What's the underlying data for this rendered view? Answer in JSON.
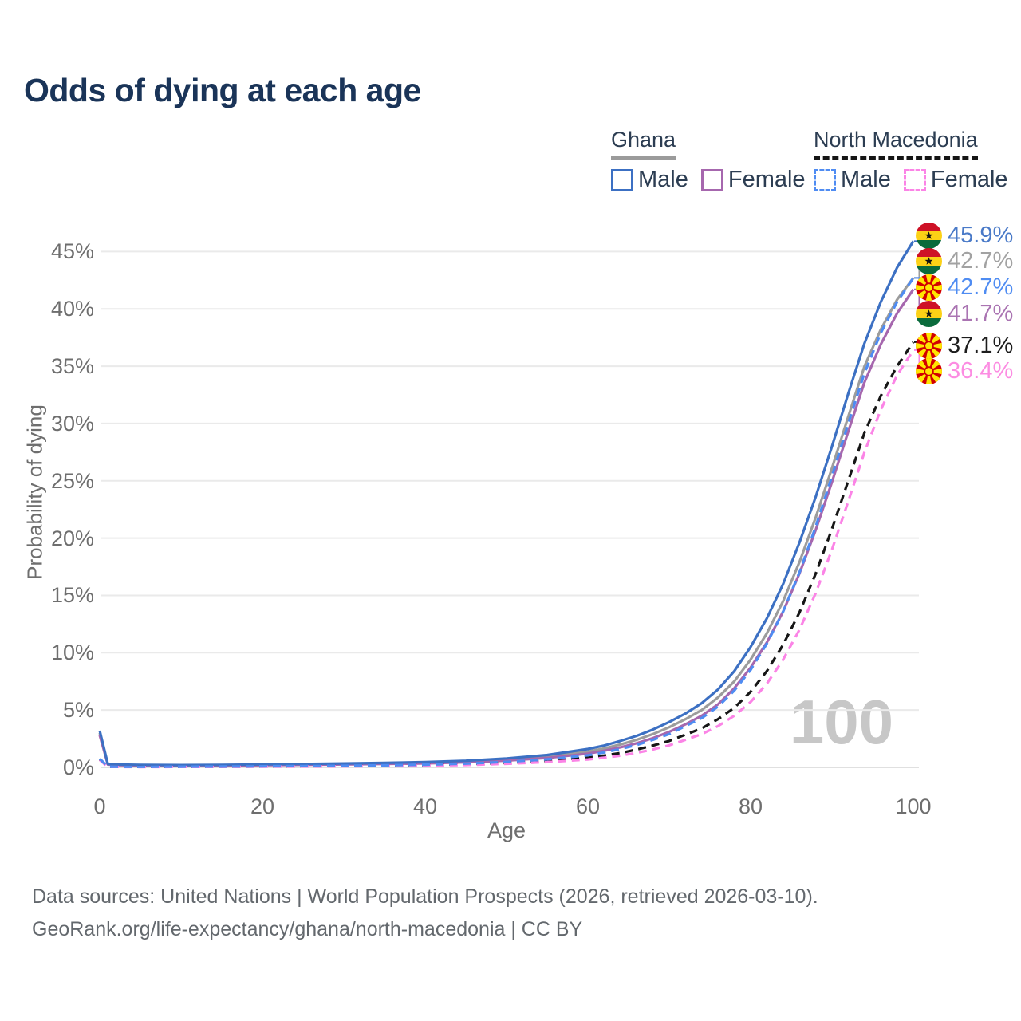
{
  "title": "Odds of dying at each age",
  "legend": {
    "groups": [
      {
        "name": "Ghana",
        "line_style": "solid",
        "items": [
          {
            "label": "Male",
            "color": "#3c70c3"
          },
          {
            "label": "Female",
            "color": "#a667ae"
          }
        ]
      },
      {
        "name": "North Macedonia",
        "line_style": "dashed",
        "items": [
          {
            "label": "Male",
            "color": "#4f8cf2"
          },
          {
            "label": "Female",
            "color": "#fb84e6"
          }
        ]
      }
    ]
  },
  "watermark": "100",
  "footer": {
    "line1": "Data sources: United Nations | World Population Prospects (2026, retrieved 2026-03-10).",
    "line2": "GeoRank.org/life-expectancy/ghana/north-macedonia | CC BY"
  },
  "chart_data": {
    "type": "line",
    "title": "Odds of dying at each age",
    "xlabel": "Age",
    "ylabel": "Probability of dying",
    "xlim": [
      0,
      100
    ],
    "ylim_pct": [
      0,
      46
    ],
    "grid": "horizontal",
    "x_ticks": [
      "0",
      "20",
      "40",
      "60",
      "80",
      "100"
    ],
    "y_ticks": [
      "0%",
      "5%",
      "10%",
      "15%",
      "20%",
      "25%",
      "30%",
      "35%",
      "40%",
      "45%"
    ],
    "ages": [
      0,
      1,
      2,
      5,
      10,
      15,
      20,
      25,
      30,
      35,
      40,
      45,
      50,
      55,
      60,
      62,
      64,
      66,
      68,
      70,
      72,
      74,
      76,
      78,
      80,
      82,
      84,
      86,
      88,
      90,
      92,
      94,
      96,
      98,
      100
    ],
    "series": [
      {
        "name": "Ghana Both sexes",
        "country": "Ghana",
        "sex": "Both",
        "color": "#9c9c9c",
        "dash": false,
        "end_label": "42.7%",
        "values_pct": [
          3.0,
          0.27,
          0.22,
          0.19,
          0.17,
          0.19,
          0.22,
          0.25,
          0.29,
          0.33,
          0.39,
          0.5,
          0.67,
          0.93,
          1.38,
          1.65,
          2.0,
          2.4,
          2.9,
          3.5,
          4.2,
          5.0,
          6.1,
          7.5,
          9.4,
          11.7,
          14.5,
          17.9,
          21.8,
          26.1,
          30.6,
          35.0,
          38.2,
          40.8,
          42.7
        ]
      },
      {
        "name": "Ghana Female",
        "country": "Ghana",
        "sex": "Female",
        "color": "#a667ae",
        "dash": false,
        "end_label": "41.7%",
        "values_pct": [
          2.8,
          0.25,
          0.2,
          0.17,
          0.15,
          0.17,
          0.19,
          0.22,
          0.26,
          0.3,
          0.35,
          0.44,
          0.59,
          0.82,
          1.2,
          1.45,
          1.75,
          2.1,
          2.55,
          3.1,
          3.75,
          4.5,
          5.5,
          6.9,
          8.7,
          10.9,
          13.6,
          16.9,
          20.7,
          24.9,
          29.3,
          33.6,
          36.9,
          39.6,
          41.7
        ]
      },
      {
        "name": "Ghana Male",
        "country": "Ghana",
        "sex": "Male",
        "color": "#3c70c3",
        "dash": false,
        "end_label": "45.9%",
        "values_pct": [
          3.2,
          0.3,
          0.25,
          0.22,
          0.2,
          0.22,
          0.26,
          0.3,
          0.34,
          0.39,
          0.46,
          0.58,
          0.78,
          1.08,
          1.6,
          1.9,
          2.3,
          2.75,
          3.3,
          3.95,
          4.7,
          5.6,
          6.8,
          8.4,
          10.5,
          13.0,
          16.0,
          19.6,
          23.6,
          28.0,
          32.6,
          37.0,
          40.6,
          43.6,
          45.9
        ]
      },
      {
        "name": "North Macedonia Both sexes",
        "country": "North Macedonia",
        "sex": "Both",
        "color": "#161616",
        "dash": true,
        "end_label": "37.1%",
        "values_pct": [
          0.7,
          0.05,
          0.04,
          0.04,
          0.05,
          0.06,
          0.08,
          0.1,
          0.12,
          0.15,
          0.19,
          0.27,
          0.39,
          0.57,
          0.85,
          1.03,
          1.25,
          1.55,
          1.9,
          2.3,
          2.85,
          3.4,
          4.2,
          5.2,
          6.6,
          8.4,
          10.7,
          13.5,
          16.9,
          20.8,
          25.0,
          29.2,
          32.4,
          35.0,
          37.1
        ]
      },
      {
        "name": "North Macedonia Female",
        "country": "North Macedonia",
        "sex": "Female",
        "color": "#fb84e6",
        "dash": true,
        "end_label": "36.4%",
        "values_pct": [
          0.65,
          0.05,
          0.04,
          0.03,
          0.04,
          0.05,
          0.06,
          0.08,
          0.09,
          0.12,
          0.15,
          0.21,
          0.31,
          0.46,
          0.69,
          0.84,
          1.02,
          1.27,
          1.56,
          1.92,
          2.4,
          2.9,
          3.6,
          4.5,
          5.7,
          7.3,
          9.4,
          12.0,
          15.2,
          19.0,
          23.2,
          27.5,
          31.2,
          34.2,
          36.4
        ]
      },
      {
        "name": "North Macedonia Male",
        "country": "North Macedonia",
        "sex": "Male",
        "color": "#4f8cf2",
        "dash": true,
        "end_label": "42.7%",
        "values_pct": [
          0.75,
          0.06,
          0.05,
          0.05,
          0.06,
          0.08,
          0.1,
          0.12,
          0.14,
          0.18,
          0.24,
          0.33,
          0.48,
          0.7,
          1.05,
          1.3,
          1.6,
          1.95,
          2.4,
          2.9,
          3.6,
          4.3,
          5.3,
          6.7,
          8.5,
          10.8,
          13.6,
          17.0,
          21.0,
          25.4,
          30.0,
          34.4,
          37.9,
          40.6,
          42.7
        ]
      }
    ],
    "end_labels": [
      {
        "flag": "ghana",
        "text": "45.9%",
        "color": "#4a7ac8",
        "series": "Ghana Male"
      },
      {
        "flag": "ghana",
        "text": "42.7%",
        "color": "#a2a2a2",
        "series": "Ghana Both sexes"
      },
      {
        "flag": "north-macedonia",
        "text": "42.7%",
        "color": "#4f8cf2",
        "series": "North Macedonia Male"
      },
      {
        "flag": "ghana",
        "text": "41.7%",
        "color": "#aa74b2",
        "series": "Ghana Female"
      },
      {
        "flag": "north-macedonia",
        "text": "37.1%",
        "color": "#1d1d1d",
        "series": "North Macedonia Both sexes"
      },
      {
        "flag": "north-macedonia",
        "text": "36.4%",
        "color": "#fc8ce2",
        "series": "North Macedonia Female"
      }
    ]
  }
}
